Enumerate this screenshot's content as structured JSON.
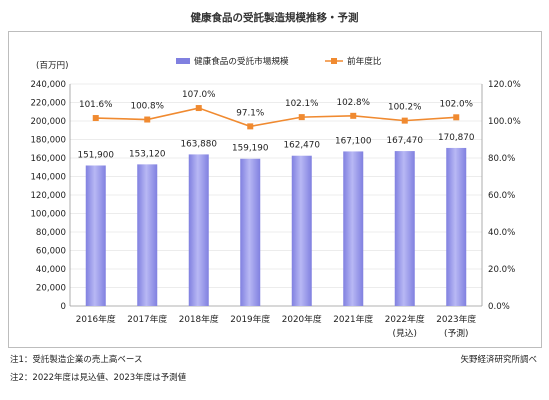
{
  "chart_data": {
    "type": "bar+line",
    "title": "健康食品の受託製造規模推移・予測",
    "y_left_unit": "(百万円)",
    "y_left_ticks": [
      "0",
      "20,000",
      "40,000",
      "60,000",
      "80,000",
      "100,000",
      "120,000",
      "140,000",
      "160,000",
      "180,000",
      "200,000",
      "220,000",
      "240,000"
    ],
    "y_left_range": [
      0,
      240000
    ],
    "y_right_ticks": [
      "0.0%",
      "20.0%",
      "40.0%",
      "60.0%",
      "80.0%",
      "100.0%",
      "120.0%"
    ],
    "y_right_range": [
      0,
      120
    ],
    "categories": [
      {
        "label": "2016年度",
        "sub": ""
      },
      {
        "label": "2017年度",
        "sub": ""
      },
      {
        "label": "2018年度",
        "sub": ""
      },
      {
        "label": "2019年度",
        "sub": ""
      },
      {
        "label": "2020年度",
        "sub": ""
      },
      {
        "label": "2021年度",
        "sub": ""
      },
      {
        "label": "2022年度",
        "sub": "(見込)"
      },
      {
        "label": "2023年度",
        "sub": "(予測)"
      }
    ],
    "legend": {
      "bar": "健康食品の受託市場規模",
      "line": "前年度比"
    },
    "bar_values": [
      151900,
      153120,
      163880,
      159190,
      162470,
      167100,
      167470,
      170870
    ],
    "bar_labels": [
      "151,900",
      "153,120",
      "163,880",
      "159,190",
      "162,470",
      "167,100",
      "167,470",
      "170,870"
    ],
    "line_values": [
      101.6,
      100.8,
      107.0,
      97.1,
      102.1,
      102.8,
      100.2,
      102.0
    ],
    "line_labels": [
      "101.6%",
      "100.8%",
      "107.0%",
      "97.1%",
      "102.1%",
      "102.8%",
      "100.2%",
      "102.0%"
    ],
    "colors": {
      "bar": "#8080e0",
      "bar_light": "#b8b8f4",
      "line": "#f08a30",
      "grid": "#d9d9d9"
    }
  },
  "notes": {
    "note1": "注1：受託製造企業の売上高ベース",
    "note2": "注2：2022年度は見込値、2023年度は予測値",
    "source": "矢野経済研究所調べ"
  }
}
